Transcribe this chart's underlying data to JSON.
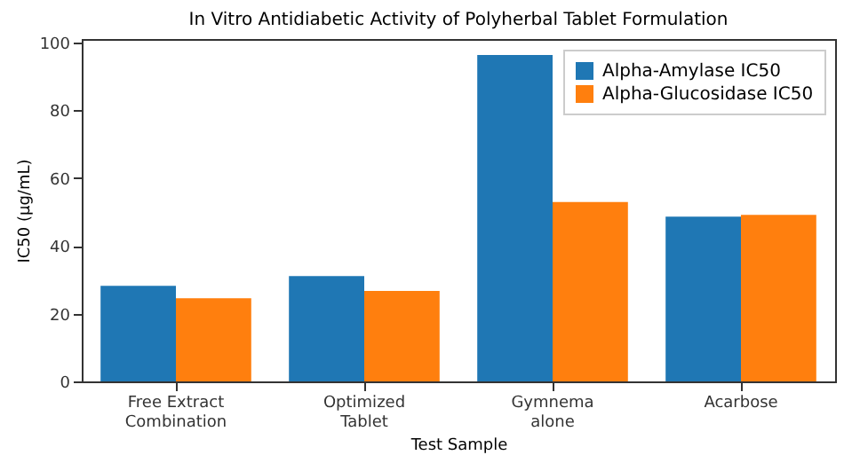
{
  "chart_data": {
    "type": "bar",
    "title": "In Vitro Antidiabetic Activity of Polyherbal Tablet Formulation",
    "xlabel": "Test Sample",
    "ylabel": "IC50 (µg/mL)",
    "categories": [
      "Free Extract\nCombination",
      "Optimized\nTablet",
      "Gymnema\nalone",
      "Acarbose"
    ],
    "series": [
      {
        "name": "Alpha-Amylase IC50",
        "color": "#1f77b4",
        "values": [
          28.2,
          31.1,
          96.3,
          48.6
        ]
      },
      {
        "name": "Alpha-Glucosidase IC50",
        "color": "#ff7f0e",
        "values": [
          24.5,
          26.7,
          52.9,
          49.1
        ]
      }
    ],
    "ylim": [
      0,
      101
    ],
    "yticks": [
      0,
      20,
      40,
      60,
      80,
      100
    ],
    "grid": false,
    "legend": "top right"
  }
}
